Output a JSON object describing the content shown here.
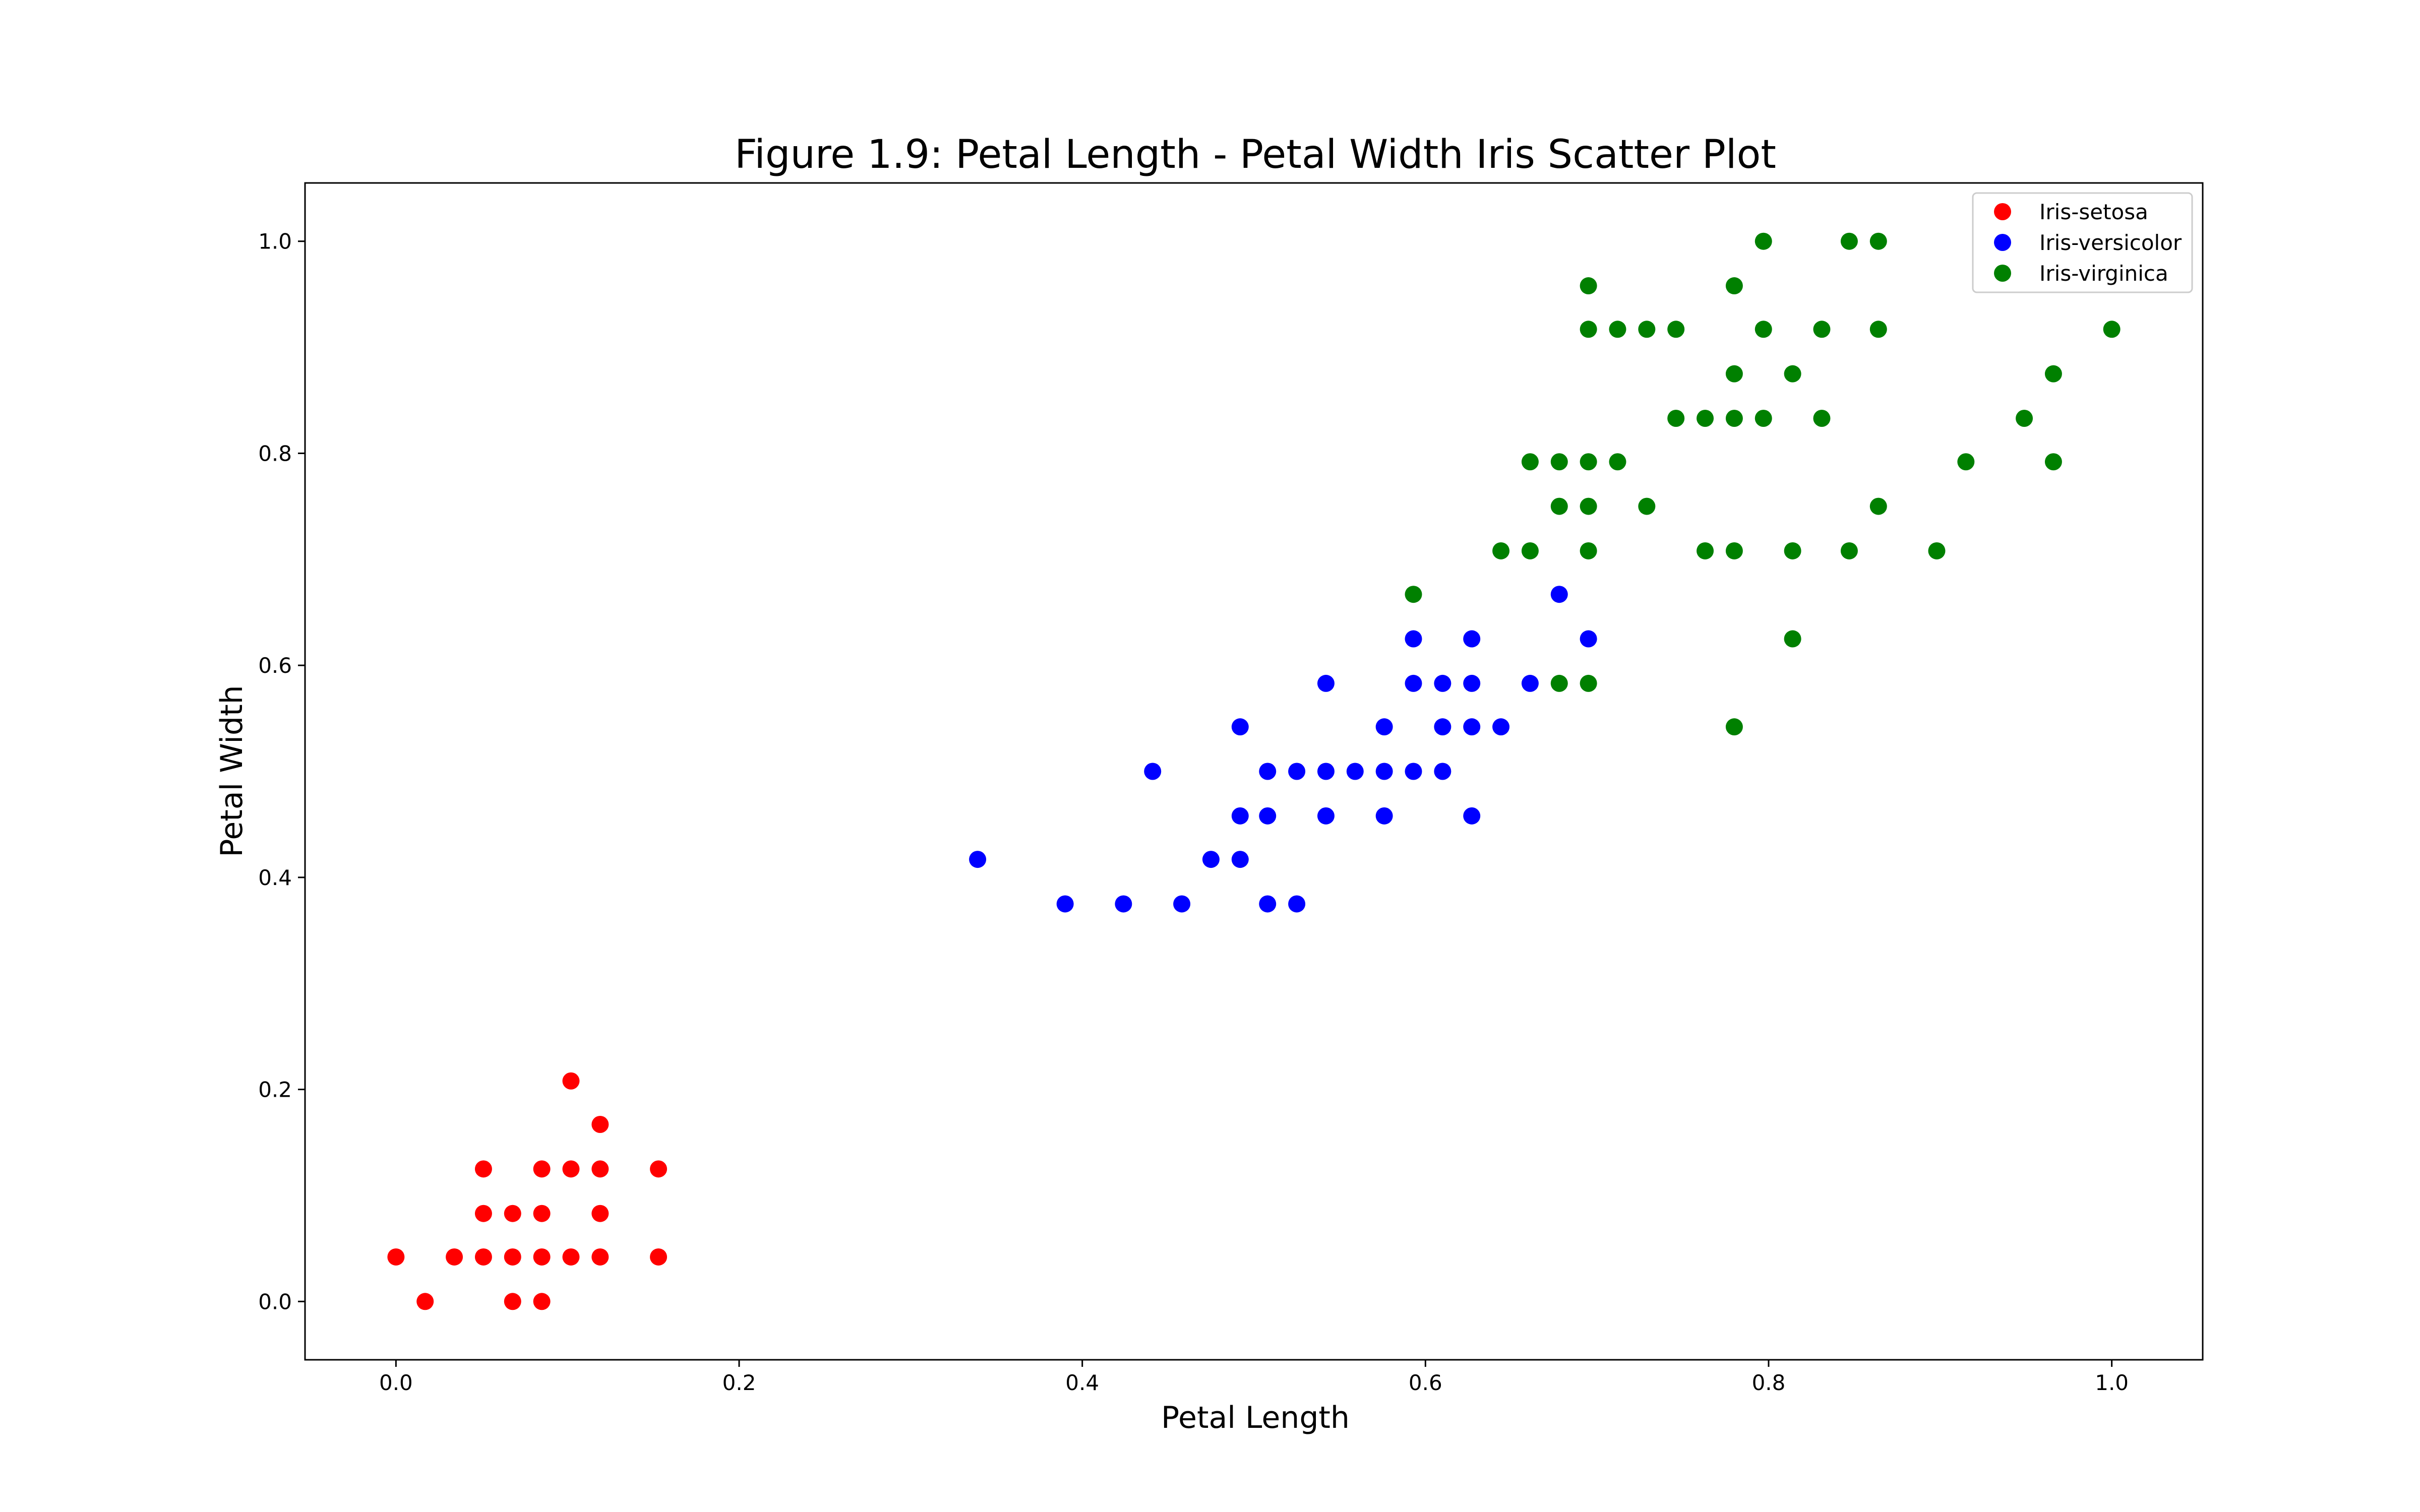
{
  "chart_data": {
    "type": "scatter",
    "title": "Figure 1.9: Petal Length - Petal Width Iris Scatter Plot",
    "xlabel": "Petal Length",
    "ylabel": "Petal Width",
    "xlim": [
      -0.053,
      1.053
    ],
    "ylim": [
      -0.055,
      1.055
    ],
    "xticks": [
      "0.0",
      "0.2",
      "0.4",
      "0.6",
      "0.8",
      "1.0"
    ],
    "yticks": [
      "0.0",
      "0.2",
      "0.4",
      "0.6",
      "0.8",
      "1.0"
    ],
    "grid": false,
    "legend": {
      "placement": "top-right"
    },
    "series": [
      {
        "name": "Iris-setosa",
        "color": "#ff0000",
        "points": [
          [
            0.0,
            0.042
          ],
          [
            0.017,
            0.0
          ],
          [
            0.034,
            0.042
          ],
          [
            0.051,
            0.125
          ],
          [
            0.051,
            0.083
          ],
          [
            0.051,
            0.042
          ],
          [
            0.068,
            0.083
          ],
          [
            0.068,
            0.042
          ],
          [
            0.068,
            0.0
          ],
          [
            0.085,
            0.125
          ],
          [
            0.085,
            0.083
          ],
          [
            0.085,
            0.042
          ],
          [
            0.085,
            0.0
          ],
          [
            0.102,
            0.208
          ],
          [
            0.102,
            0.125
          ],
          [
            0.102,
            0.042
          ],
          [
            0.119,
            0.167
          ],
          [
            0.119,
            0.125
          ],
          [
            0.119,
            0.083
          ],
          [
            0.119,
            0.042
          ],
          [
            0.153,
            0.125
          ],
          [
            0.153,
            0.042
          ]
        ]
      },
      {
        "name": "Iris-versicolor",
        "color": "#0000ff",
        "points": [
          [
            0.339,
            0.417
          ],
          [
            0.39,
            0.375
          ],
          [
            0.424,
            0.375
          ],
          [
            0.441,
            0.5
          ],
          [
            0.458,
            0.375
          ],
          [
            0.475,
            0.417
          ],
          [
            0.492,
            0.542
          ],
          [
            0.492,
            0.458
          ],
          [
            0.492,
            0.417
          ],
          [
            0.508,
            0.5
          ],
          [
            0.508,
            0.458
          ],
          [
            0.508,
            0.375
          ],
          [
            0.525,
            0.5
          ],
          [
            0.525,
            0.375
          ],
          [
            0.542,
            0.583
          ],
          [
            0.542,
            0.5
          ],
          [
            0.542,
            0.458
          ],
          [
            0.559,
            0.5
          ],
          [
            0.576,
            0.542
          ],
          [
            0.576,
            0.5
          ],
          [
            0.576,
            0.458
          ],
          [
            0.593,
            0.625
          ],
          [
            0.593,
            0.583
          ],
          [
            0.593,
            0.5
          ],
          [
            0.61,
            0.583
          ],
          [
            0.61,
            0.542
          ],
          [
            0.61,
            0.5
          ],
          [
            0.627,
            0.625
          ],
          [
            0.627,
            0.583
          ],
          [
            0.627,
            0.542
          ],
          [
            0.627,
            0.458
          ],
          [
            0.644,
            0.542
          ],
          [
            0.661,
            0.583
          ],
          [
            0.678,
            0.667
          ],
          [
            0.695,
            0.625
          ]
        ]
      },
      {
        "name": "Iris-virginica",
        "color": "#008000",
        "points": [
          [
            0.593,
            0.667
          ],
          [
            0.644,
            0.708
          ],
          [
            0.661,
            0.792
          ],
          [
            0.661,
            0.708
          ],
          [
            0.678,
            0.792
          ],
          [
            0.678,
            0.75
          ],
          [
            0.678,
            0.583
          ],
          [
            0.695,
            0.958
          ],
          [
            0.695,
            0.917
          ],
          [
            0.695,
            0.792
          ],
          [
            0.695,
            0.75
          ],
          [
            0.695,
            0.708
          ],
          [
            0.695,
            0.583
          ],
          [
            0.712,
            0.917
          ],
          [
            0.712,
            0.792
          ],
          [
            0.729,
            0.917
          ],
          [
            0.729,
            0.75
          ],
          [
            0.746,
            0.917
          ],
          [
            0.746,
            0.833
          ],
          [
            0.763,
            0.833
          ],
          [
            0.763,
            0.708
          ],
          [
            0.78,
            0.958
          ],
          [
            0.78,
            0.875
          ],
          [
            0.78,
            0.833
          ],
          [
            0.78,
            0.708
          ],
          [
            0.78,
            0.542
          ],
          [
            0.797,
            1.0
          ],
          [
            0.797,
            0.917
          ],
          [
            0.797,
            0.833
          ],
          [
            0.814,
            0.875
          ],
          [
            0.814,
            0.708
          ],
          [
            0.814,
            0.625
          ],
          [
            0.831,
            0.917
          ],
          [
            0.831,
            0.833
          ],
          [
            0.847,
            1.0
          ],
          [
            0.847,
            0.708
          ],
          [
            0.864,
            1.0
          ],
          [
            0.864,
            0.917
          ],
          [
            0.864,
            0.75
          ],
          [
            0.898,
            0.708
          ],
          [
            0.915,
            0.792
          ],
          [
            0.949,
            0.833
          ],
          [
            0.966,
            0.875
          ],
          [
            0.966,
            0.792
          ],
          [
            1.0,
            0.917
          ]
        ]
      }
    ]
  }
}
